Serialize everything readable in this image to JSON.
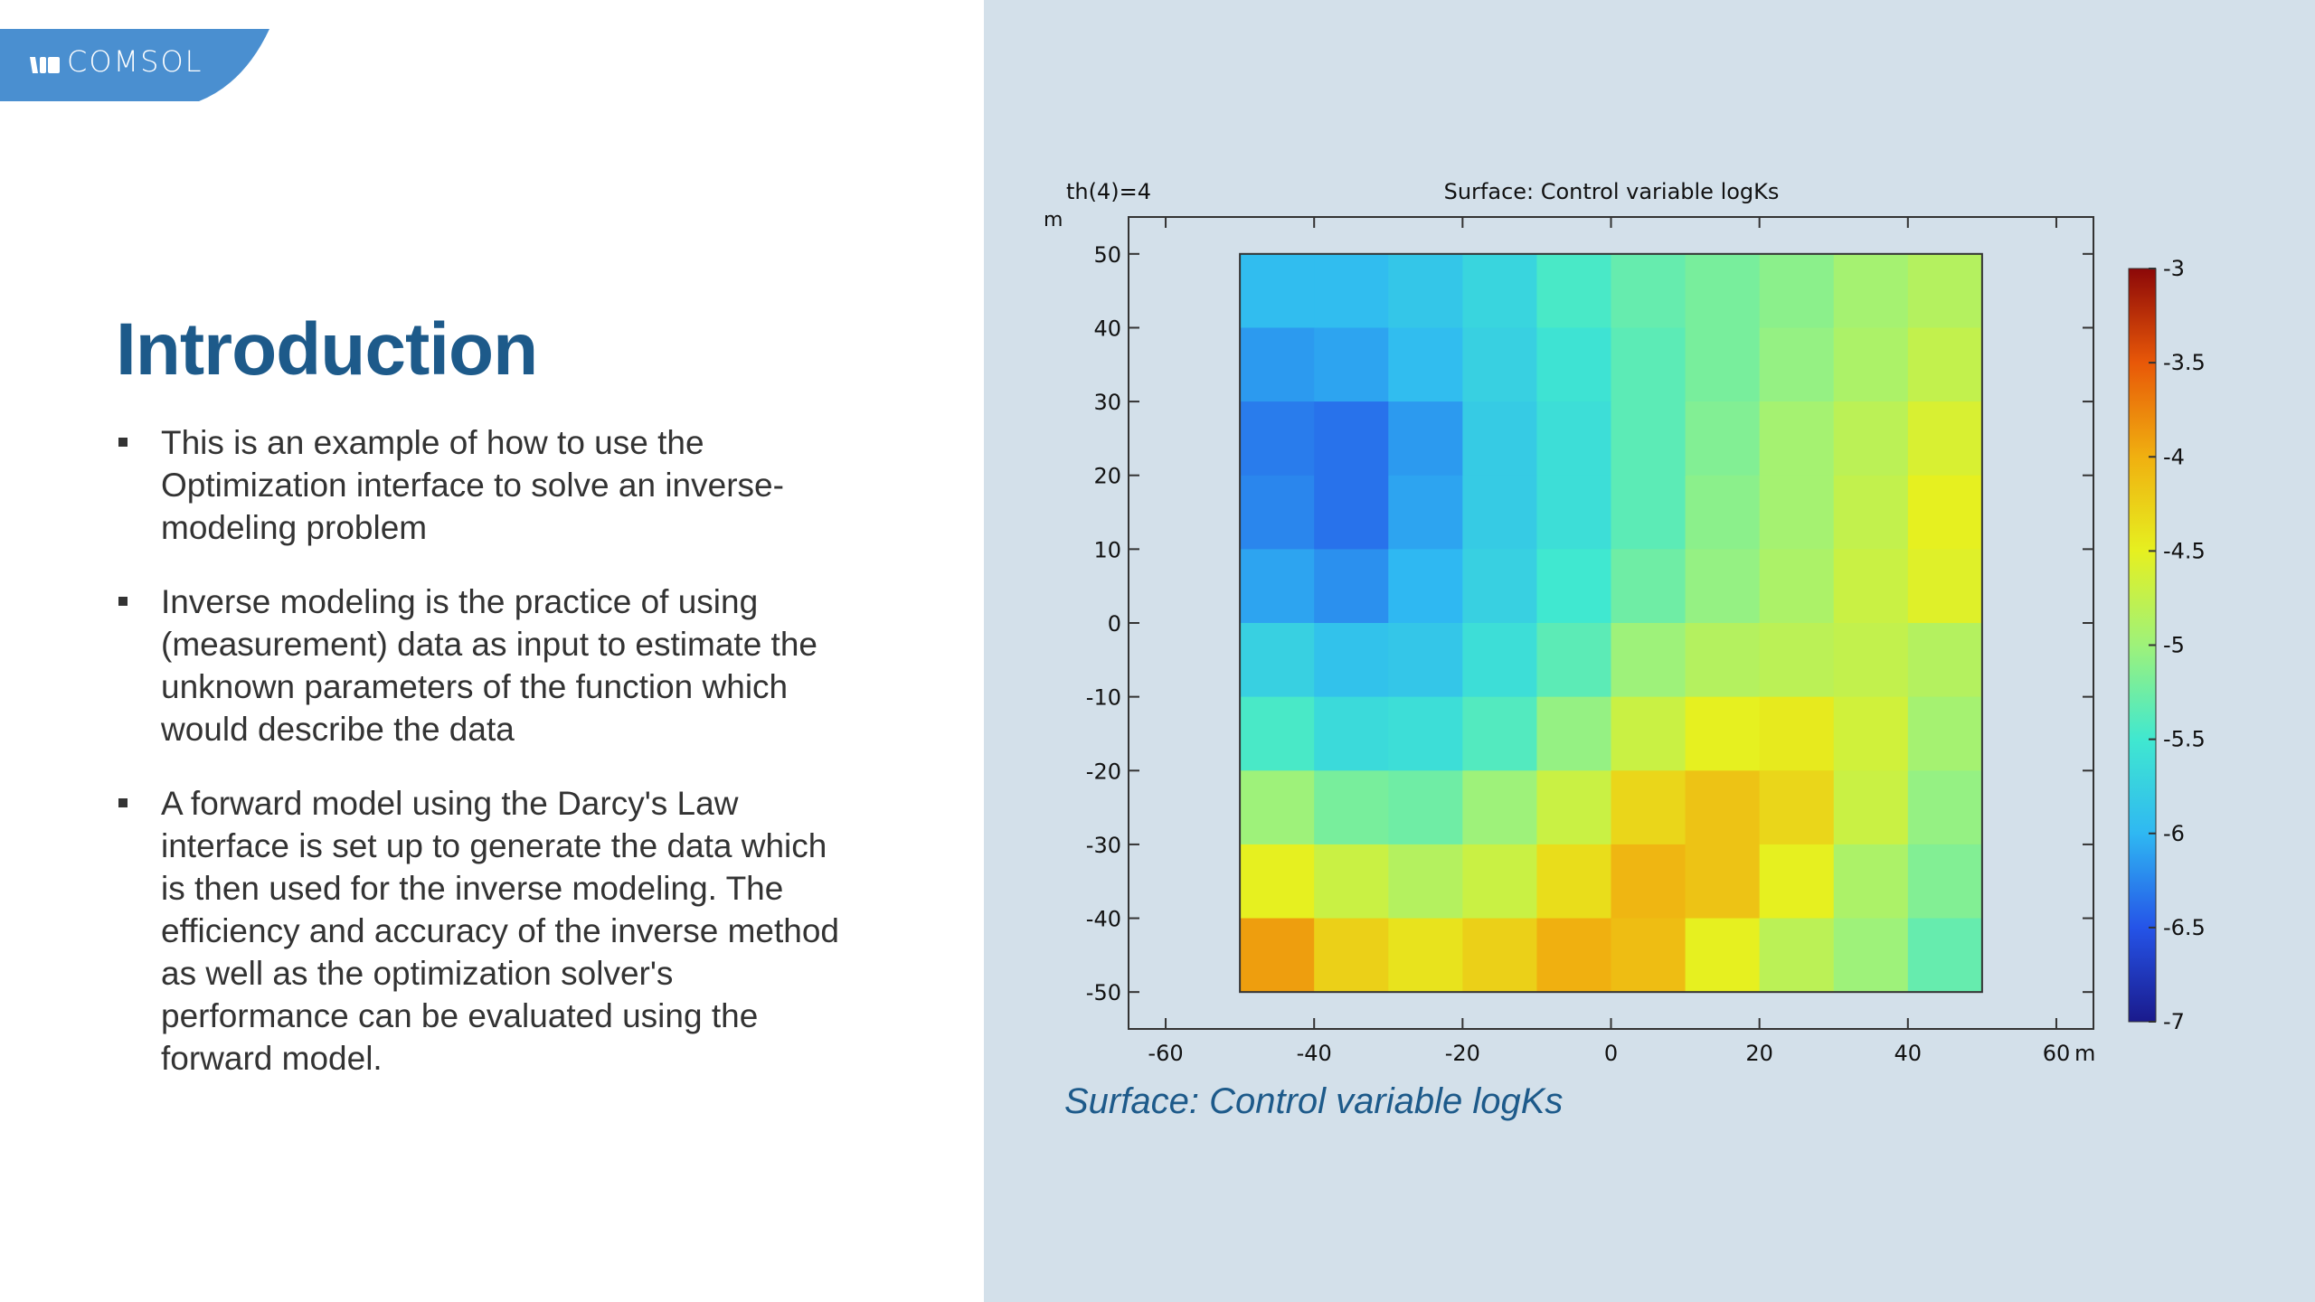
{
  "logo": {
    "text": "COMSOL",
    "color": "#4a8fd0"
  },
  "slide": {
    "title": "Introduction",
    "bullets": [
      "This is an example of how to use the Optimization interface to solve an inverse-modeling problem",
      "Inverse modeling is the practice of using (measurement) data as input to estimate the unknown parameters of the function which would describe the data",
      "A forward model using the Darcy's Law interface is set up to generate the data which is then used for the inverse modeling. The efficiency and accuracy of the inverse method as well as the optimization solver's performance can be evaluated using the forward model."
    ],
    "caption": "Surface: Control variable logKs"
  },
  "chart_data": {
    "type": "heatmap",
    "title": "Surface: Control variable logKs",
    "parameter_label": "th(4)=4",
    "y_unit_label": "m",
    "x_unit_label": "m",
    "xlim": [
      -65,
      65
    ],
    "ylim": [
      -55,
      55
    ],
    "x_ticks": [
      -60,
      -40,
      -20,
      0,
      20,
      40,
      60
    ],
    "y_ticks": [
      50,
      40,
      30,
      20,
      10,
      0,
      -10,
      -20,
      -30,
      -40,
      -50
    ],
    "grid": false,
    "cell_x_edges": [
      -50,
      -40,
      -30,
      -20,
      -10,
      0,
      10,
      20,
      30,
      40,
      50
    ],
    "cell_y_edges": [
      50,
      40,
      30,
      20,
      10,
      0,
      -10,
      -20,
      -30,
      -40,
      -50
    ],
    "values": [
      [
        -5.95,
        -5.95,
        -5.85,
        -5.7,
        -5.45,
        -5.3,
        -5.2,
        -5.1,
        -4.95,
        -4.85
      ],
      [
        -6.15,
        -6.1,
        -5.95,
        -5.75,
        -5.55,
        -5.35,
        -5.2,
        -5.05,
        -4.9,
        -4.75
      ],
      [
        -6.3,
        -6.35,
        -6.15,
        -5.8,
        -5.6,
        -5.35,
        -5.15,
        -4.95,
        -4.8,
        -4.6
      ],
      [
        -6.25,
        -6.35,
        -6.1,
        -5.8,
        -5.6,
        -5.35,
        -5.1,
        -4.95,
        -4.75,
        -4.5
      ],
      [
        -6.1,
        -6.2,
        -6.0,
        -5.75,
        -5.5,
        -5.25,
        -5.05,
        -4.9,
        -4.7,
        -4.55
      ],
      [
        -5.75,
        -5.9,
        -5.85,
        -5.6,
        -5.35,
        -5.0,
        -4.85,
        -4.8,
        -4.75,
        -4.85
      ],
      [
        -5.45,
        -5.65,
        -5.6,
        -5.4,
        -5.05,
        -4.7,
        -4.5,
        -4.45,
        -4.65,
        -4.95
      ],
      [
        -5.0,
        -5.2,
        -5.25,
        -5.0,
        -4.7,
        -4.3,
        -4.15,
        -4.3,
        -4.7,
        -5.05
      ],
      [
        -4.5,
        -4.7,
        -4.85,
        -4.7,
        -4.35,
        -4.05,
        -4.15,
        -4.5,
        -4.9,
        -5.15
      ],
      [
        -3.9,
        -4.25,
        -4.4,
        -4.25,
        -4.0,
        -4.1,
        -4.5,
        -4.8,
        -5.0,
        -5.3
      ]
    ],
    "colorbar": {
      "min": -7,
      "max": -3,
      "tick_labels": [
        "-3",
        "-3.5",
        "-4",
        "-4.5",
        "-5",
        "-5.5",
        "-6",
        "-6.5",
        "-7"
      ],
      "colormap": "rainbow",
      "colors": [
        "#1a1a8c",
        "#2554e8",
        "#2fb8f2",
        "#40e8d0",
        "#9ef27a",
        "#e6f020",
        "#f0b010",
        "#e85808",
        "#8c0808"
      ]
    }
  }
}
